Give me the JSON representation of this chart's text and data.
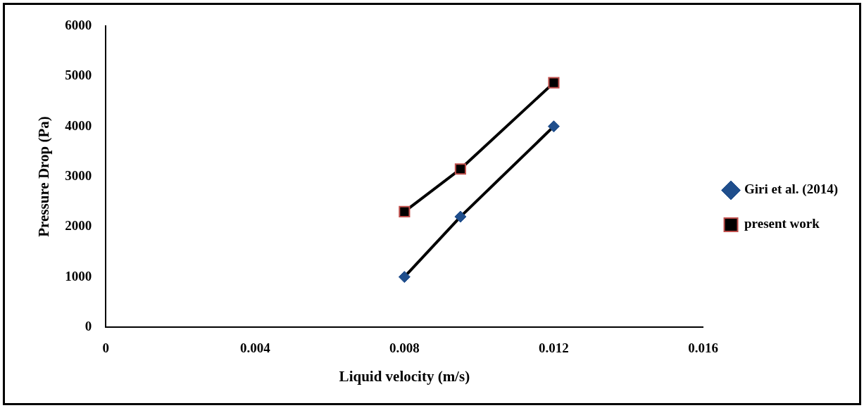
{
  "chart_data": {
    "type": "line",
    "xlabel": "Liquid velocity (m/s)",
    "ylabel": "Pressure Drop (Pa)",
    "xlim": [
      0,
      0.016
    ],
    "xticks": [
      0,
      0.004,
      0.008,
      0.012,
      0.016
    ],
    "ylim": [
      0,
      6000
    ],
    "yticks": [
      0,
      1000,
      2000,
      3000,
      4000,
      5000,
      6000
    ],
    "grid": false,
    "legend": "right",
    "series": [
      {
        "name": "Giri et al. (2014)",
        "color": "#1f4e8c",
        "marker": "diamond",
        "x": [
          0.008,
          0.0095,
          0.012
        ],
        "values": [
          1000,
          2200,
          4000
        ]
      },
      {
        "name": "present work",
        "color": "#000000",
        "marker": "square",
        "x": [
          0.008,
          0.0095,
          0.012
        ],
        "values": [
          2300,
          3150,
          4870
        ]
      }
    ]
  }
}
